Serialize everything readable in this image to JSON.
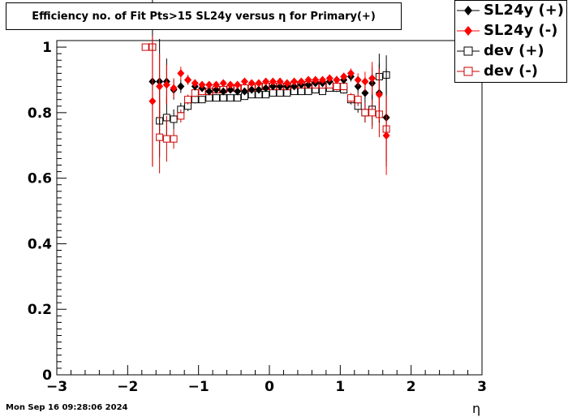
{
  "chart_data": {
    "type": "scatter",
    "title": "Efficiency no. of Fit Pts>15 SL24y versus η for Primary(+)",
    "xlabel": "η",
    "ylabel": "",
    "xlim": [
      -3,
      3
    ],
    "ylim": [
      0,
      1.02
    ],
    "x_ticks": [
      "−3",
      "−2",
      "−1",
      "0",
      "1",
      "2",
      "3"
    ],
    "y_ticks": [
      "0",
      "0.2",
      "0.4",
      "0.6",
      "0.8",
      "1"
    ],
    "grid": false,
    "legend_position": "top-right",
    "x": [
      -1.65,
      -1.55,
      -1.45,
      -1.35,
      -1.25,
      -1.15,
      -1.05,
      -0.95,
      -0.85,
      -0.75,
      -0.65,
      -0.55,
      -0.45,
      -0.35,
      -0.25,
      -0.15,
      -0.05,
      0.05,
      0.15,
      0.25,
      0.35,
      0.45,
      0.55,
      0.65,
      0.75,
      0.85,
      0.95,
      1.05,
      1.15,
      1.25,
      1.35,
      1.45,
      1.55,
      1.65
    ],
    "series": [
      {
        "name": "SL24y (+)",
        "color": "#000000",
        "marker": "diamond-filled",
        "values": [
          0.895,
          0.895,
          0.895,
          0.87,
          0.88,
          0.9,
          0.88,
          0.875,
          0.865,
          0.87,
          0.865,
          0.87,
          0.865,
          0.865,
          0.87,
          0.87,
          0.875,
          0.88,
          0.88,
          0.88,
          0.88,
          0.885,
          0.885,
          0.89,
          0.89,
          0.895,
          0.9,
          0.9,
          0.91,
          0.88,
          0.86,
          0.89,
          0.86,
          0.785
        ],
        "errors": [
          0.26,
          0.13,
          0.07,
          0.03,
          0.02,
          0.015,
          0.012,
          0.01,
          0.01,
          0.01,
          0.01,
          0.01,
          0.01,
          0.01,
          0.01,
          0.01,
          0.01,
          0.01,
          0.01,
          0.01,
          0.01,
          0.01,
          0.01,
          0.01,
          0.01,
          0.01,
          0.012,
          0.012,
          0.015,
          0.02,
          0.03,
          0.05,
          0.09,
          0.15
        ]
      },
      {
        "name": "SL24y (-)",
        "color": "#ff0000",
        "marker": "diamond-filled",
        "values": [
          0.835,
          0.88,
          0.885,
          0.875,
          0.92,
          0.9,
          0.89,
          0.885,
          0.885,
          0.885,
          0.89,
          0.885,
          0.885,
          0.895,
          0.89,
          0.89,
          0.895,
          0.895,
          0.895,
          0.89,
          0.895,
          0.895,
          0.9,
          0.9,
          0.9,
          0.905,
          0.9,
          0.91,
          0.92,
          0.9,
          0.895,
          0.905,
          0.855,
          0.73
        ],
        "errors": [
          0.2,
          0.1,
          0.06,
          0.03,
          0.02,
          0.015,
          0.012,
          0.01,
          0.01,
          0.01,
          0.01,
          0.01,
          0.01,
          0.01,
          0.01,
          0.01,
          0.01,
          0.01,
          0.01,
          0.01,
          0.01,
          0.01,
          0.01,
          0.01,
          0.01,
          0.01,
          0.012,
          0.012,
          0.015,
          0.02,
          0.03,
          0.05,
          0.08,
          0.12
        ]
      },
      {
        "name": "dev (+)",
        "color": "#000000",
        "marker": "square-open",
        "values": [
          1.0,
          0.775,
          0.785,
          0.78,
          0.81,
          0.82,
          0.84,
          0.84,
          0.845,
          0.845,
          0.845,
          0.845,
          0.845,
          0.85,
          0.855,
          0.855,
          0.855,
          0.86,
          0.86,
          0.86,
          0.865,
          0.865,
          0.865,
          0.87,
          0.865,
          0.875,
          0.875,
          0.87,
          0.84,
          0.82,
          0.8,
          0.81,
          0.91,
          0.915
        ],
        "errors": [
          0.0,
          0.11,
          0.06,
          0.03,
          0.02,
          0.015,
          0.012,
          0.01,
          0.01,
          0.01,
          0.01,
          0.01,
          0.01,
          0.01,
          0.01,
          0.01,
          0.01,
          0.01,
          0.01,
          0.01,
          0.01,
          0.01,
          0.01,
          0.01,
          0.01,
          0.01,
          0.012,
          0.012,
          0.015,
          0.02,
          0.03,
          0.05,
          0.07,
          0.06
        ]
      },
      {
        "name": "dev (-)",
        "color": "#cc0000",
        "marker": "square-open",
        "values": [
          1.0,
          0.725,
          0.72,
          0.72,
          0.79,
          0.84,
          0.86,
          0.865,
          0.865,
          0.87,
          0.87,
          0.875,
          0.875,
          0.875,
          0.875,
          0.88,
          0.88,
          0.88,
          0.88,
          0.88,
          0.885,
          0.885,
          0.885,
          0.885,
          0.885,
          0.885,
          0.88,
          0.88,
          0.845,
          0.84,
          0.8,
          0.8,
          0.795,
          0.75
        ],
        "errors": [
          0.0,
          0.11,
          0.07,
          0.03,
          0.02,
          0.015,
          0.012,
          0.01,
          0.01,
          0.01,
          0.01,
          0.01,
          0.01,
          0.01,
          0.01,
          0.01,
          0.01,
          0.01,
          0.01,
          0.01,
          0.01,
          0.01,
          0.01,
          0.01,
          0.01,
          0.01,
          0.012,
          0.012,
          0.015,
          0.02,
          0.03,
          0.05,
          0.07,
          0.1
        ]
      }
    ],
    "dev_extra": [
      {
        "series": 3,
        "x": -1.75,
        "value": 1.0
      }
    ]
  },
  "footer": "Mon Sep 16 09:28:06 2024"
}
